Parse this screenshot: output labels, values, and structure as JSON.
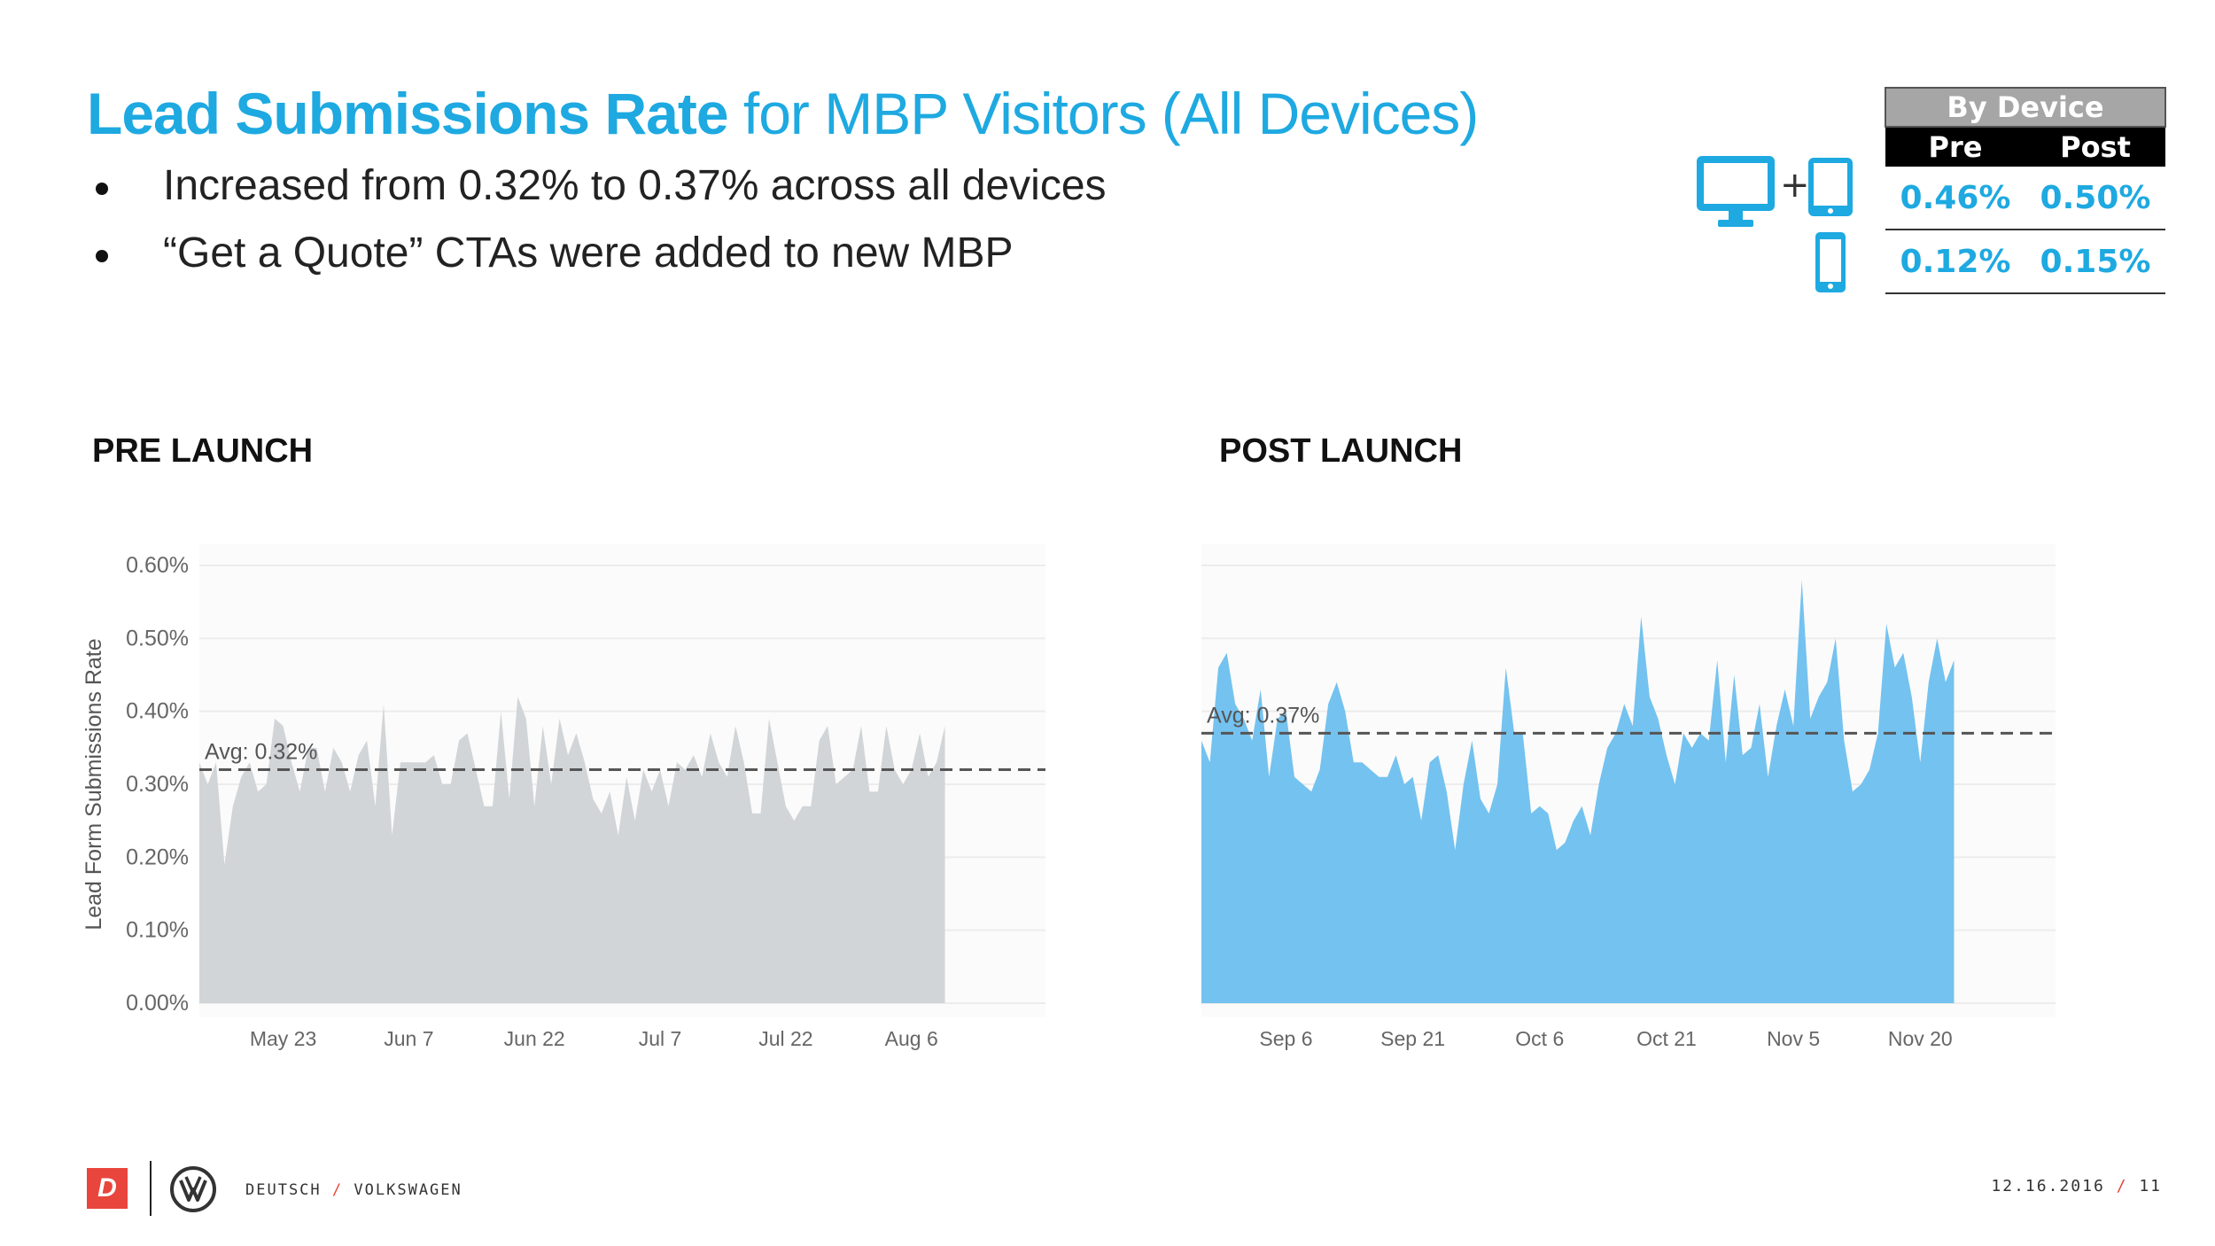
{
  "header": {
    "title_bold": "Lead Submissions Rate",
    "title_rest": " for MBP Visitors (All Devices)"
  },
  "bullets": [
    "Increased from 0.32% to 0.37% across all devices",
    "“Get a Quote” CTAs were added to new MBP"
  ],
  "device_table": {
    "caption": "By Device",
    "col_pre": "Pre",
    "col_post": "Post",
    "rows": [
      {
        "device": "desktop + tablet",
        "pre": "0.46%",
        "post": "0.50%"
      },
      {
        "device": "mobile",
        "pre": "0.12%",
        "post": "0.15%"
      }
    ],
    "icons": [
      "desktop-icon",
      "tablet-icon",
      "mobile-icon"
    ],
    "plus": "+"
  },
  "sections": {
    "pre": "PRE LAUNCH",
    "post": "POST LAUNCH"
  },
  "colors": {
    "accent": "#1ea9e1",
    "pre_fill": "#d1d5d8",
    "post_fill": "#74c2ef",
    "footer_red": "#e8453c"
  },
  "chart_data": [
    {
      "type": "area",
      "title": "PRE LAUNCH",
      "ylabel": "Lead Form Submissions Rate",
      "xlabel": "",
      "ylim": [
        0,
        0.6
      ],
      "yticks": [
        0,
        0.1,
        0.2,
        0.3,
        0.4,
        0.5,
        0.6
      ],
      "ytick_labels": [
        "0.00%",
        "0.10%",
        "0.20%",
        "0.30%",
        "0.40%",
        "0.50%",
        "0.60%"
      ],
      "xlim": [
        0,
        101
      ],
      "xticks": [
        10,
        25,
        40,
        55,
        70,
        85
      ],
      "xtick_labels": [
        "May 23",
        "Jun 7",
        "Jun 22",
        "Jul 7",
        "Jul 22",
        "Aug 6"
      ],
      "avg": 0.32,
      "avg_label": "Avg: 0.32%",
      "grid": true,
      "series": [
        {
          "name": "Lead Form Submissions Rate",
          "color": "#d1d5d8",
          "x": [
            0,
            1,
            2,
            3,
            4,
            5,
            6,
            7,
            8,
            9,
            10,
            11,
            12,
            13,
            14,
            15,
            16,
            17,
            18,
            19,
            20,
            21,
            22,
            23,
            24,
            25,
            26,
            27,
            28,
            29,
            30,
            31,
            32,
            33,
            34,
            35,
            36,
            37,
            38,
            39,
            40,
            41,
            42,
            43,
            44,
            45,
            46,
            47,
            48,
            49,
            50,
            51,
            52,
            53,
            54,
            55,
            56,
            57,
            58,
            59,
            60,
            61,
            62,
            63,
            64,
            65,
            66,
            67,
            68,
            69,
            70,
            71,
            72,
            73,
            74,
            75,
            76,
            77,
            78,
            79,
            80,
            81,
            82,
            83,
            84,
            85,
            86,
            87,
            88,
            89
          ],
          "values": [
            0.33,
            0.3,
            0.33,
            0.19,
            0.27,
            0.31,
            0.33,
            0.29,
            0.3,
            0.39,
            0.38,
            0.33,
            0.29,
            0.35,
            0.35,
            0.29,
            0.35,
            0.33,
            0.29,
            0.34,
            0.36,
            0.27,
            0.41,
            0.23,
            0.33,
            0.33,
            0.33,
            0.33,
            0.34,
            0.3,
            0.3,
            0.36,
            0.37,
            0.32,
            0.27,
            0.27,
            0.4,
            0.28,
            0.42,
            0.39,
            0.27,
            0.38,
            0.3,
            0.39,
            0.34,
            0.37,
            0.33,
            0.28,
            0.26,
            0.29,
            0.23,
            0.31,
            0.25,
            0.32,
            0.29,
            0.32,
            0.27,
            0.33,
            0.32,
            0.34,
            0.31,
            0.37,
            0.33,
            0.31,
            0.38,
            0.33,
            0.26,
            0.26,
            0.39,
            0.33,
            0.27,
            0.25,
            0.27,
            0.27,
            0.36,
            0.38,
            0.3,
            0.31,
            0.32,
            0.38,
            0.29,
            0.29,
            0.38,
            0.32,
            0.3,
            0.32,
            0.37,
            0.31,
            0.33,
            0.38
          ]
        }
      ]
    },
    {
      "type": "area",
      "title": "POST LAUNCH",
      "xlabel": "",
      "ylim": [
        0,
        0.6
      ],
      "yticks": [
        0,
        0.1,
        0.2,
        0.3,
        0.4,
        0.5,
        0.6
      ],
      "ytick_labels": [],
      "xlim": [
        0,
        101
      ],
      "xticks": [
        10,
        25,
        40,
        55,
        70,
        85
      ],
      "xtick_labels": [
        "Sep 6",
        "Sep 21",
        "Oct 6",
        "Oct 21",
        "Nov 5",
        "Nov 20"
      ],
      "avg": 0.37,
      "avg_label": "Avg: 0.37%",
      "grid": true,
      "series": [
        {
          "name": "Lead Form Submissions Rate",
          "color": "#74c2ef",
          "x": [
            0,
            1,
            2,
            3,
            4,
            5,
            6,
            7,
            8,
            9,
            10,
            11,
            12,
            13,
            14,
            15,
            16,
            17,
            18,
            19,
            20,
            21,
            22,
            23,
            24,
            25,
            26,
            27,
            28,
            29,
            30,
            31,
            32,
            33,
            34,
            35,
            36,
            37,
            38,
            39,
            40,
            41,
            42,
            43,
            44,
            45,
            46,
            47,
            48,
            49,
            50,
            51,
            52,
            53,
            54,
            55,
            56,
            57,
            58,
            59,
            60,
            61,
            62,
            63,
            64,
            65,
            66,
            67,
            68,
            69,
            70,
            71,
            72,
            73,
            74,
            75,
            76,
            77,
            78,
            79,
            80,
            81,
            82,
            83,
            84,
            85,
            86,
            87,
            88,
            89
          ],
          "values": [
            0.36,
            0.33,
            0.46,
            0.48,
            0.41,
            0.39,
            0.36,
            0.43,
            0.31,
            0.39,
            0.4,
            0.31,
            0.3,
            0.29,
            0.32,
            0.41,
            0.44,
            0.4,
            0.33,
            0.33,
            0.32,
            0.31,
            0.31,
            0.34,
            0.3,
            0.31,
            0.25,
            0.33,
            0.34,
            0.29,
            0.21,
            0.3,
            0.36,
            0.28,
            0.26,
            0.3,
            0.46,
            0.37,
            0.37,
            0.26,
            0.27,
            0.26,
            0.21,
            0.22,
            0.25,
            0.27,
            0.23,
            0.3,
            0.35,
            0.37,
            0.41,
            0.38,
            0.53,
            0.42,
            0.39,
            0.34,
            0.3,
            0.37,
            0.35,
            0.37,
            0.36,
            0.47,
            0.33,
            0.45,
            0.34,
            0.35,
            0.41,
            0.31,
            0.38,
            0.43,
            0.38,
            0.58,
            0.39,
            0.42,
            0.44,
            0.5,
            0.36,
            0.29,
            0.3,
            0.32,
            0.37,
            0.52,
            0.46,
            0.48,
            0.42,
            0.33,
            0.44,
            0.5,
            0.44,
            0.47
          ]
        }
      ]
    }
  ],
  "footer": {
    "logo_letter": "D",
    "brand_left": "DEUTSCH",
    "brand_sep": "/",
    "brand_right": "VOLKSWAGEN",
    "date": "12.16.2016",
    "page": "11"
  }
}
